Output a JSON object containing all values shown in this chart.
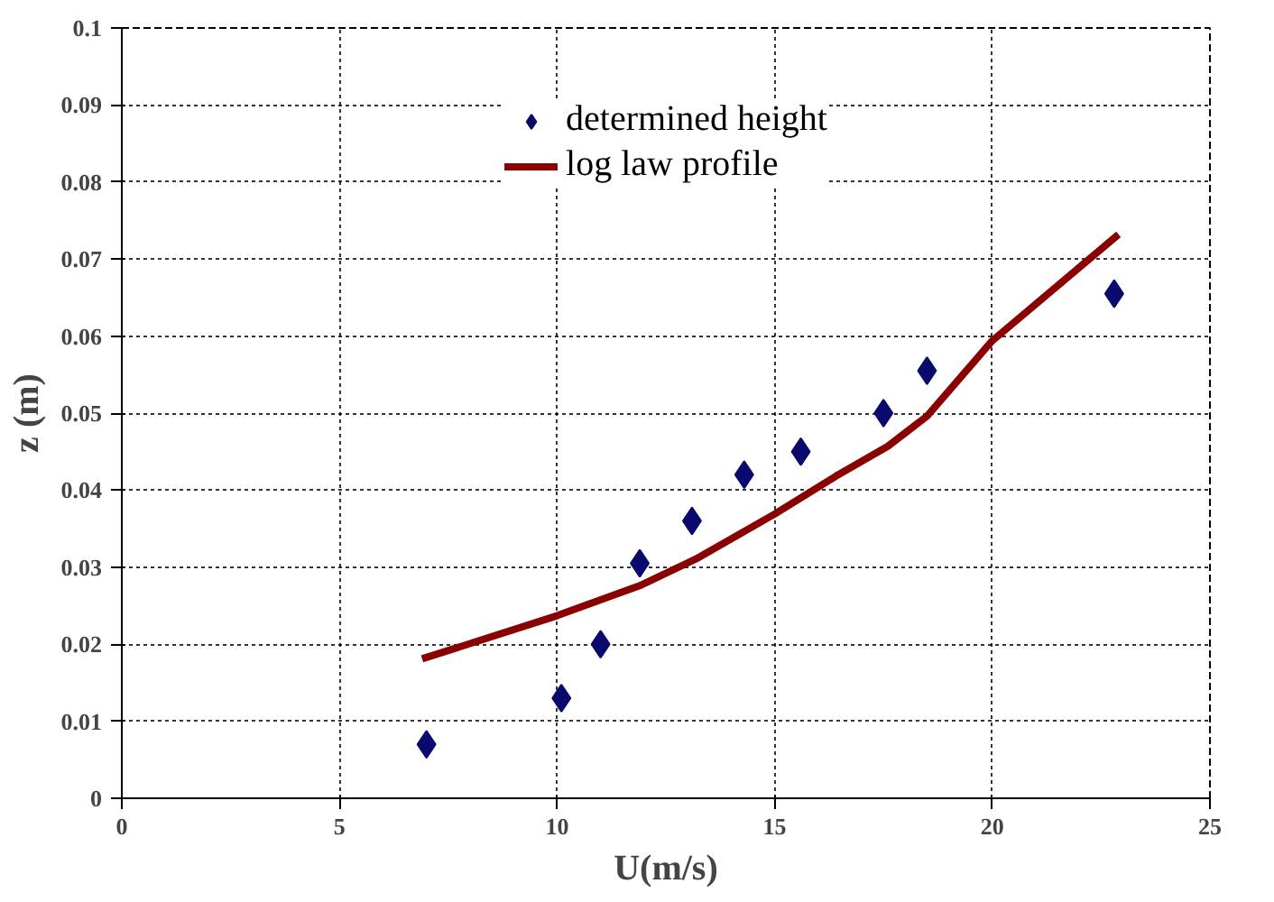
{
  "chart_data": {
    "type": "scatter",
    "xlabel": "U(m/s)",
    "ylabel": "z (m)",
    "xlim": [
      0,
      25
    ],
    "xticks": [
      0,
      5,
      10,
      15,
      20,
      25
    ],
    "ylim": [
      0,
      0.1
    ],
    "yticks": [
      0,
      0.01,
      0.02,
      0.03,
      0.04,
      0.05,
      0.06,
      0.07,
      0.08,
      0.09,
      0.1
    ],
    "grid": true,
    "legend": "top",
    "series": [
      {
        "name": "determined height",
        "marker": "diamond",
        "color": "#0a0a6e",
        "x": [
          7.0,
          10.1,
          11.0,
          11.9,
          13.1,
          14.3,
          15.6,
          17.5,
          18.5,
          22.8
        ],
        "values": [
          0.007,
          0.013,
          0.02,
          0.0305,
          0.036,
          0.042,
          0.045,
          0.05,
          0.0555,
          0.0655
        ]
      },
      {
        "name": "log law profile",
        "type": "line",
        "color": "#8b0000",
        "x": [
          6.9,
          10.0,
          11.9,
          13.2,
          15.0,
          16.4,
          17.6,
          18.5,
          20.0,
          22.9
        ],
        "values": [
          0.0181,
          0.0237,
          0.0276,
          0.0311,
          0.0369,
          0.0418,
          0.0457,
          0.0496,
          0.0594,
          0.0732
        ]
      }
    ]
  }
}
